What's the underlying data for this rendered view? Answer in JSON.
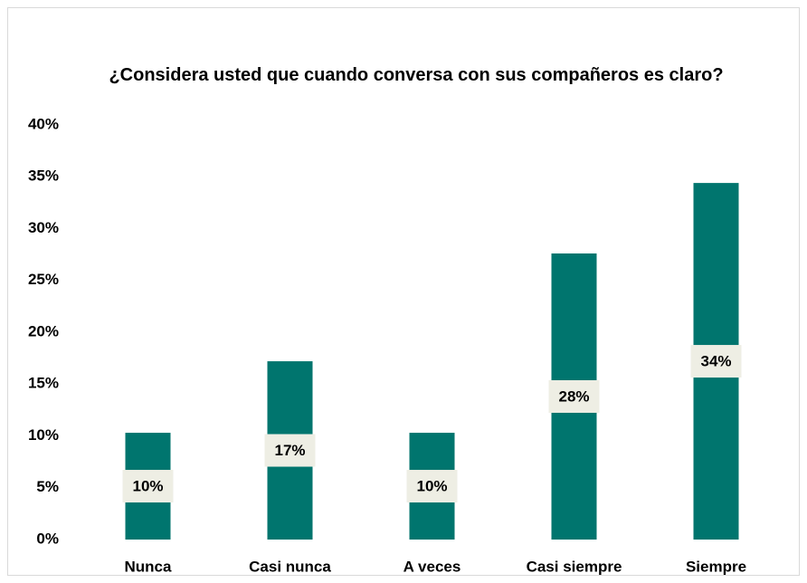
{
  "chart_data": {
    "type": "bar",
    "title": "¿Considera usted que cuando conversa con sus compañeros es claro?",
    "categories": [
      "Nunca",
      "Casi nunca",
      "A veces",
      "Casi siempre",
      "Siempre"
    ],
    "values": [
      10.3,
      17.2,
      10.3,
      27.6,
      34.4
    ],
    "value_labels": [
      "10%",
      "17%",
      "10%",
      "28%",
      "34%"
    ],
    "color": "#00756e",
    "ylim": [
      0,
      40
    ],
    "yticks": [
      {
        "value": 0,
        "label": "0%"
      },
      {
        "value": 5,
        "label": "5%"
      },
      {
        "value": 10,
        "label": "10%"
      },
      {
        "value": 15,
        "label": "15%"
      },
      {
        "value": 20,
        "label": "20%"
      },
      {
        "value": 25,
        "label": "25%"
      },
      {
        "value": 30,
        "label": "30%"
      },
      {
        "value": 35,
        "label": "35%"
      },
      {
        "value": 40,
        "label": "40%"
      }
    ],
    "grid": false
  }
}
